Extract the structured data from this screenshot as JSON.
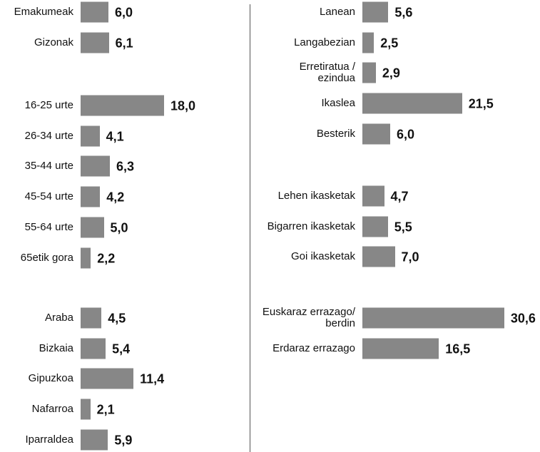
{
  "chart_data": [
    {
      "type": "bar",
      "color": "#878787",
      "categories": [
        "Emakumeak",
        "Gizonak"
      ],
      "values": [
        6.0,
        6.1
      ],
      "value_labels": [
        "6,0",
        "6,1"
      ]
    },
    {
      "type": "bar",
      "color": "#878787",
      "categories": [
        "16-25 urte",
        "26-34 urte",
        "35-44 urte",
        "45-54 urte",
        "55-64 urte",
        "65etik gora"
      ],
      "values": [
        18.0,
        4.1,
        6.3,
        4.2,
        5.0,
        2.2
      ],
      "value_labels": [
        "18,0",
        "4,1",
        "6,3",
        "4,2",
        "5,0",
        "2,2"
      ]
    },
    {
      "type": "bar",
      "color": "#878787",
      "categories": [
        "Araba",
        "Bizkaia",
        "Gipuzkoa",
        "Nafarroa",
        "Iparraldea"
      ],
      "values": [
        4.5,
        5.4,
        11.4,
        2.1,
        5.9
      ],
      "value_labels": [
        "4,5",
        "5,4",
        "11,4",
        "2,1",
        "5,9"
      ]
    },
    {
      "type": "bar",
      "color": "#878787",
      "categories": [
        "Lanean",
        "Langabezian",
        "Erretiratua /\nezindua",
        "Ikaslea",
        "Besterik"
      ],
      "values": [
        5.6,
        2.5,
        2.9,
        21.5,
        6.0
      ],
      "value_labels": [
        "5,6",
        "2,5",
        "2,9",
        "21,5",
        "6,0"
      ]
    },
    {
      "type": "bar",
      "color": "#878787",
      "categories": [
        "Lehen ikasketak",
        "Bigarren ikasketak",
        "Goi ikasketak"
      ],
      "values": [
        4.7,
        5.5,
        7.0
      ],
      "value_labels": [
        "4,7",
        "5,5",
        "7,0"
      ]
    },
    {
      "type": "bar",
      "color": "#878787",
      "categories": [
        "Euskaraz errazago/\nberdin",
        "Erdaraz errazago"
      ],
      "values": [
        30.6,
        16.5
      ],
      "value_labels": [
        "30,6",
        "16,5"
      ]
    }
  ]
}
